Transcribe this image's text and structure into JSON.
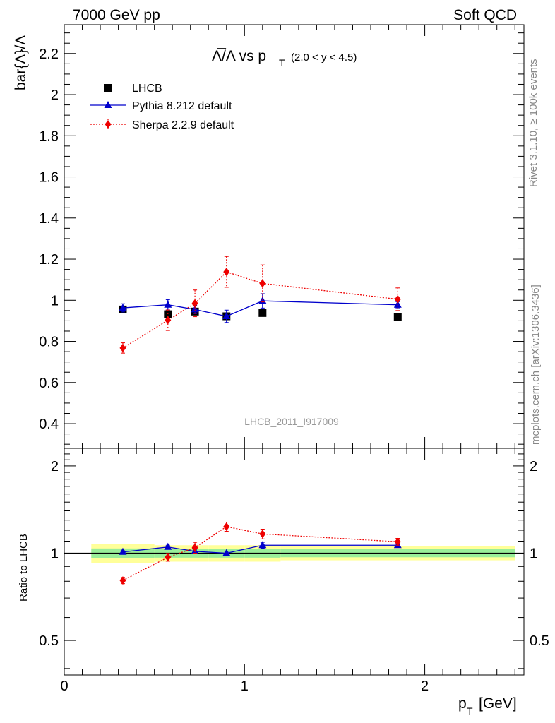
{
  "header": {
    "left": "7000 GeV pp",
    "right": "Soft QCD"
  },
  "side_labels": {
    "rivet": "Rivet 3.1.10, ≥ 100k events",
    "mcplots": "mcplots.cern.ch [arXiv:1306.3436]"
  },
  "chart_data": {
    "type": "line",
    "title_main": "Λ̅/Λ vs p",
    "title_sub": "T",
    "title_range": "(2.0 < y < 4.5)",
    "ylabel": "bar{Λ}/Λ",
    "xlabel_main": "p",
    "xlabel_sub": "T",
    "xlabel_unit": "[GeV]",
    "ratio_ylabel": "Ratio to LHCB",
    "watermark": "LHCB_2011_I917009",
    "xlim": [
      0,
      2.55
    ],
    "ylim": [
      0.28,
      2.34
    ],
    "ratio_ylim": [
      0.38,
      2.3
    ],
    "x_ticks": [
      "0",
      "1",
      "2"
    ],
    "x_tick_values": [
      0,
      1,
      2
    ],
    "y_ticks": [
      "0.4",
      "0.6",
      "0.8",
      "1",
      "1.2",
      "1.4",
      "1.6",
      "1.8",
      "2",
      "2.2"
    ],
    "y_tick_values": [
      0.4,
      0.6,
      0.8,
      1.0,
      1.2,
      1.4,
      1.6,
      1.8,
      2.0,
      2.2
    ],
    "ratio_ticks": [
      "0.5",
      "1",
      "2"
    ],
    "ratio_tick_values": [
      0.5,
      1,
      2
    ],
    "x": [
      0.325,
      0.575,
      0.725,
      0.9,
      1.1,
      1.85
    ],
    "bin_edges": [
      0.15,
      0.5,
      0.65,
      0.8,
      1.0,
      1.2,
      2.5
    ],
    "band_yellow": [
      0.925,
      0.935,
      0.935,
      0.935,
      0.935,
      0.945
    ],
    "band_green": [
      0.962,
      0.965,
      0.965,
      0.965,
      0.965,
      0.968
    ],
    "legend": [
      "LHCB",
      "Pythia 8.212 default",
      "Sherpa 2.2.9 default"
    ],
    "series": [
      {
        "name": "LHCB",
        "values": [
          0.955,
          0.932,
          0.945,
          0.922,
          0.938,
          0.918
        ],
        "errors": [
          0.015,
          0.015,
          0.015,
          0.015,
          0.015,
          0.015
        ],
        "color": "#000000",
        "marker": "square"
      },
      {
        "name": "Pythia 8.212 default",
        "values": [
          0.963,
          0.978,
          0.955,
          0.922,
          0.997,
          0.978
        ],
        "errors": [
          0.02,
          0.025,
          0.02,
          0.03,
          0.035,
          0.015
        ],
        "ratio": [
          1.01,
          1.05,
          1.015,
          1.0,
          1.065,
          1.065
        ],
        "ratio_errors": [
          0.01,
          0.015,
          0.015,
          0.015,
          0.025,
          0.015
        ],
        "color": "#0000cc",
        "marker": "triangle"
      },
      {
        "name": "Sherpa 2.2.9 default",
        "values": [
          0.768,
          0.903,
          0.985,
          1.138,
          1.082,
          1.005
        ],
        "errors": [
          0.025,
          0.05,
          0.065,
          0.075,
          0.09,
          0.055
        ],
        "ratio": [
          0.805,
          0.968,
          1.045,
          1.235,
          1.165,
          1.095
        ],
        "ratio_errors": [
          0.02,
          0.03,
          0.045,
          0.045,
          0.045,
          0.03
        ],
        "color": "#ee0000",
        "marker": "diamond"
      }
    ]
  }
}
